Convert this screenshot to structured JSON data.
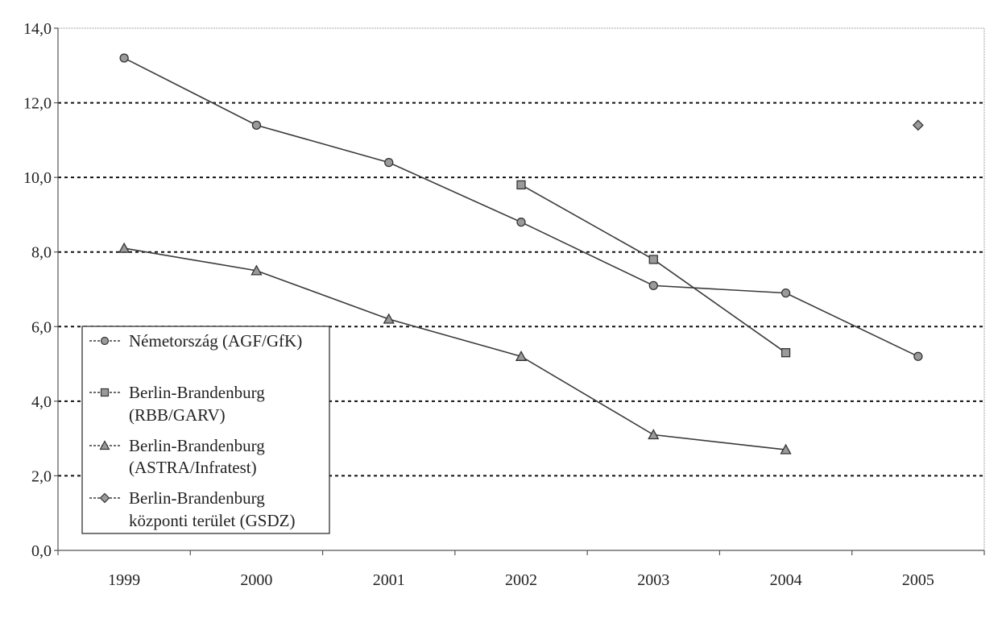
{
  "chart_data": {
    "type": "line",
    "title": "",
    "xlabel": "",
    "ylabel": "",
    "categories": [
      "1999",
      "2000",
      "2001",
      "2002",
      "2003",
      "2004",
      "2005"
    ],
    "ylim": [
      0,
      14
    ],
    "y_ticks": [
      "0,0",
      "2,0",
      "4,0",
      "6,0",
      "8,0",
      "10,0",
      "12,0",
      "14,0"
    ],
    "grid": "horizontal dashed",
    "legend_position": "bottom-left",
    "series": [
      {
        "name": "Németország (AGF/GfK)",
        "marker": "circle",
        "connected": true,
        "values": [
          13.2,
          11.4,
          10.4,
          8.8,
          7.1,
          6.9,
          5.2
        ]
      },
      {
        "name": "Berlin-Brandenburg (RBB/GARV)",
        "marker": "square",
        "connected": true,
        "values": [
          null,
          null,
          null,
          9.8,
          7.8,
          5.3,
          null
        ]
      },
      {
        "name": "Berlin-Brandenburg (ASTRA/Infratest)",
        "marker": "triangle",
        "connected": true,
        "values": [
          8.1,
          7.5,
          6.2,
          5.2,
          3.1,
          2.7,
          null
        ]
      },
      {
        "name": "Berlin-Brandenburg központi terület (GSDZ)",
        "marker": "diamond",
        "connected": false,
        "values": [
          null,
          null,
          null,
          null,
          null,
          null,
          11.4
        ]
      }
    ]
  },
  "legend": [
    {
      "line1": "Németország  (AGF/GfK)",
      "line2": ""
    },
    {
      "line1": "Berlin-Brandenburg",
      "line2": "(RBB/GARV)"
    },
    {
      "line1": "Berlin-Brandenburg",
      "line2": "(ASTRA/Infratest)"
    },
    {
      "line1": "Berlin-Brandenburg",
      "line2": "központi  terület  (GSDZ)"
    }
  ],
  "colors": {
    "line": "#3a3a3a",
    "marker_fill": "#9a9a9a",
    "grid": "#111111",
    "axis": "#555555"
  }
}
